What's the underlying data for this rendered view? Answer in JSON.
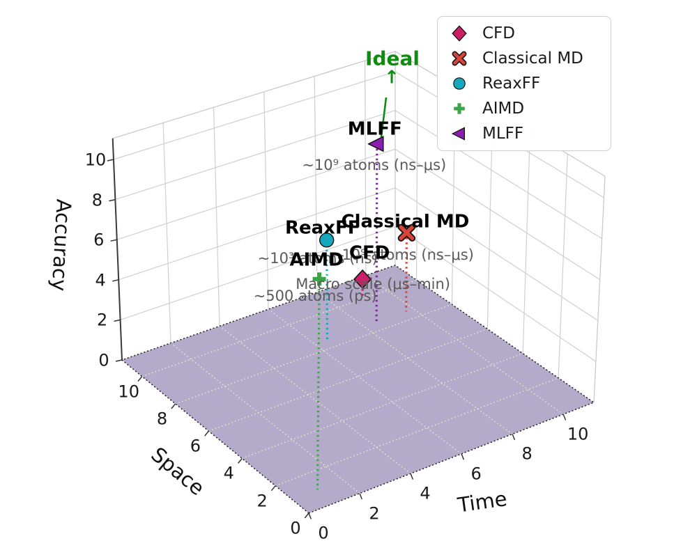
{
  "chart_data": {
    "type": "scatter",
    "projection": "3d",
    "title": "",
    "xlabel": "Time",
    "ylabel": "Space",
    "zlabel": "Accuracy",
    "xlim": [
      0,
      11.2
    ],
    "ylim": [
      0,
      11.2
    ],
    "zlim": [
      0,
      11
    ],
    "xticks": [
      0,
      2,
      4,
      6,
      8,
      10
    ],
    "yticks": [
      0,
      2,
      4,
      6,
      8,
      10
    ],
    "zticks": [
      0,
      2,
      4,
      6,
      8,
      10
    ],
    "grid": true,
    "legend_position": "upper right",
    "floor_color": "#b3abc9",
    "floor_grid_color": "#ece7cc",
    "wall_grid_color": "#cfcfcf",
    "annotation_color": "#5a5a5a",
    "points": [
      {
        "name": "CFD",
        "marker": "diamond",
        "color": "#cb2066",
        "time": 9,
        "space": 10,
        "accuracy": 1,
        "annotation": "Macro scale (μs–min)"
      },
      {
        "name": "Classical MD",
        "marker": "x",
        "color": "#d8443a",
        "time": 9.7,
        "space": 8.5,
        "accuracy": 4,
        "annotation": "~10⁹ atoms (ns–μs)"
      },
      {
        "name": "ReaxFF",
        "marker": "circle",
        "color": "#17a8be",
        "time": 6.5,
        "space": 8.5,
        "accuracy": 5,
        "annotation": "~10³ atoms (ns)"
      },
      {
        "name": "AIMD",
        "marker": "plus",
        "color": "#3ba445",
        "time": 1,
        "space": 1,
        "accuracy": 10,
        "annotation": "~500 atoms (ps)"
      },
      {
        "name": "MLFF",
        "marker": "triangle-left",
        "color": "#8a1fad",
        "time": 8.5,
        "space": 8.5,
        "accuracy": 9,
        "annotation": "~10⁹ atoms (ns–μs)"
      }
    ],
    "ideal": {
      "label": "Ideal",
      "arrow_glyph": "↑",
      "color": "#0e8c0e"
    },
    "legend_entries": [
      "CFD",
      "Classical MD",
      "ReaxFF",
      "AIMD",
      "MLFF"
    ]
  }
}
